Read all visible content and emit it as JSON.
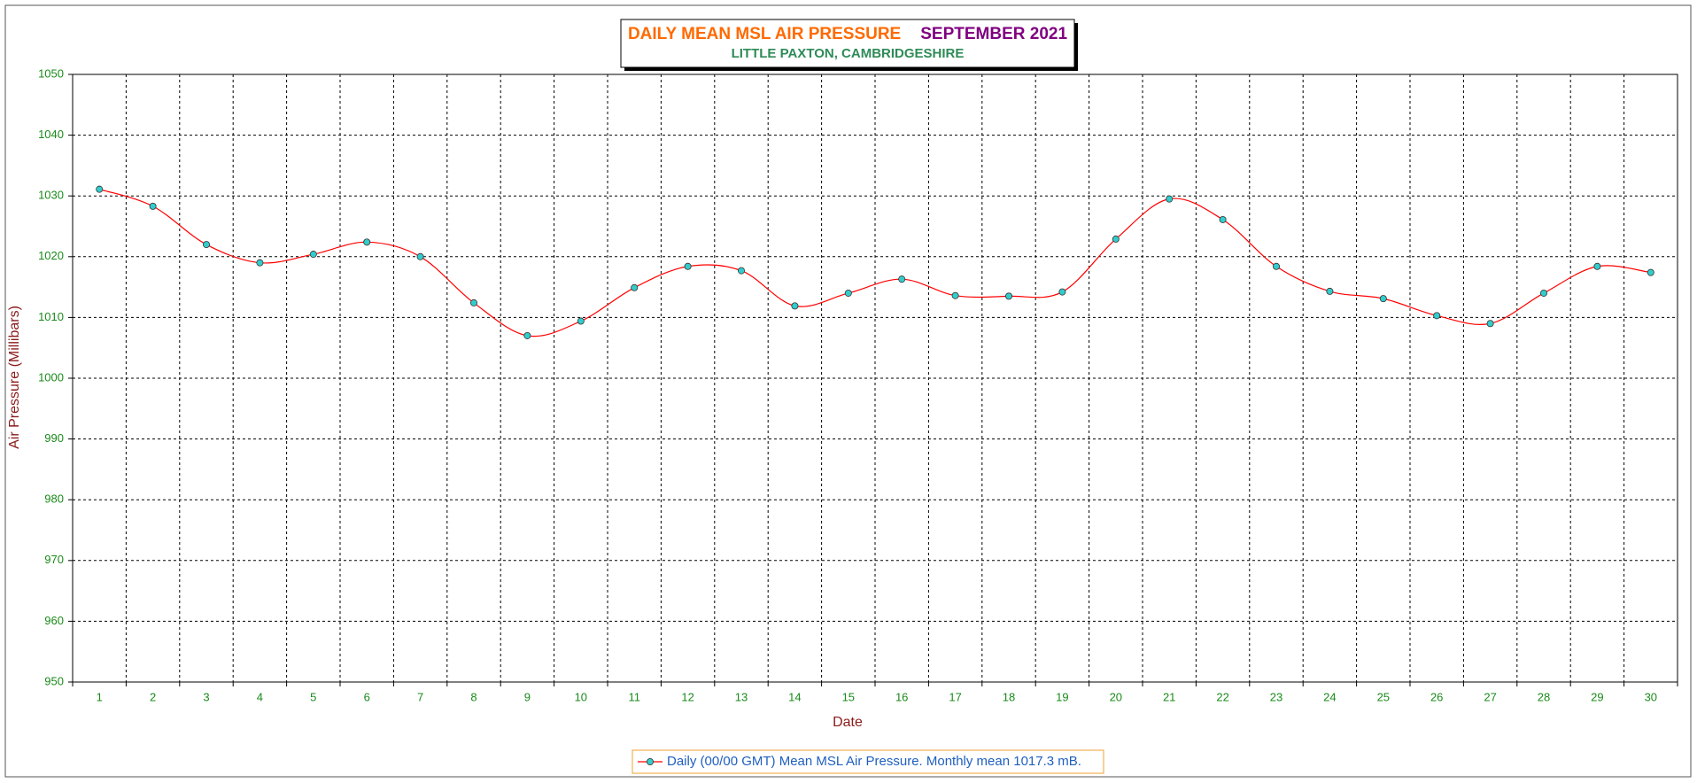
{
  "chart_data": {
    "type": "line",
    "title": "DAILY MEAN MSL AIR PRESSURE",
    "title_period": "SEPTEMBER 2021",
    "subtitle": "LITTLE PAXTON, CAMBRIDGESHIRE",
    "x_label": "Date",
    "y_label": "Air Pressure (Millibars)",
    "categories": [
      "1",
      "2",
      "3",
      "4",
      "5",
      "6",
      "7",
      "8",
      "9",
      "10",
      "11",
      "12",
      "13",
      "14",
      "15",
      "16",
      "17",
      "18",
      "19",
      "20",
      "21",
      "22",
      "23",
      "24",
      "25",
      "26",
      "27",
      "28",
      "29",
      "30"
    ],
    "series": [
      {
        "name": "Daily (00/00 GMT) Mean MSL Air Pressure. Monthly mean 1017.3 mB.",
        "color": "#ff0000",
        "marker_color": "#33cccc",
        "values": [
          1031.1,
          1028.3,
          1022.0,
          1019.0,
          1020.4,
          1022.4,
          1020.0,
          1012.4,
          1007.0,
          1009.4,
          1014.9,
          1018.4,
          1017.7,
          1011.9,
          1014.0,
          1016.3,
          1013.6,
          1013.5,
          1014.2,
          1022.9,
          1029.5,
          1026.1,
          1018.4,
          1014.3,
          1013.1,
          1010.3,
          1009.0,
          1014.0,
          1018.4,
          1017.4
        ]
      }
    ],
    "ylim": [
      950,
      1050
    ],
    "yticks": [
      950,
      960,
      970,
      980,
      990,
      1000,
      1010,
      1020,
      1030,
      1040,
      1050
    ],
    "grid": true,
    "smooth": true,
    "legend": "bottom"
  }
}
